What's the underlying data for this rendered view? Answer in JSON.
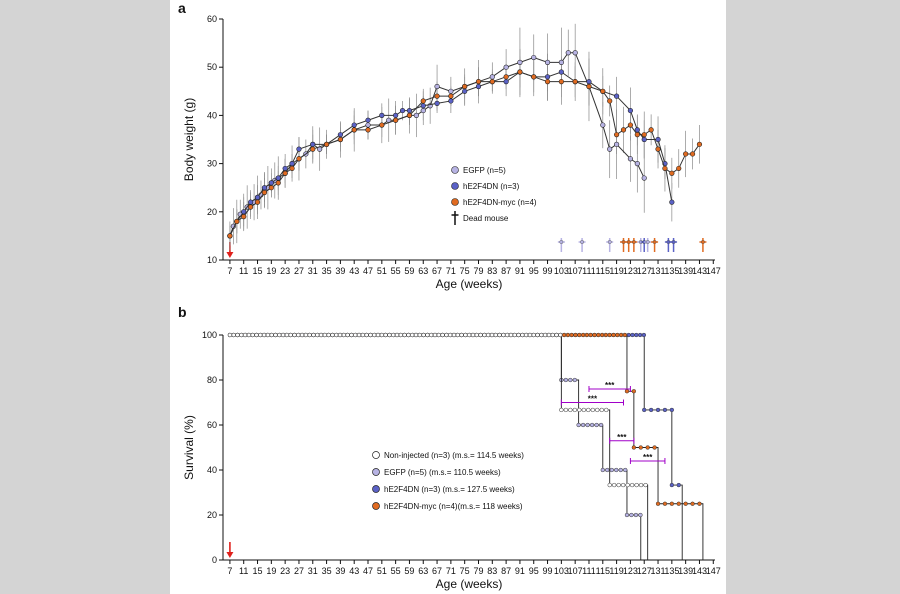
{
  "colors": {
    "egfp": "#b7b3e3",
    "hE2F4DN": "#5b62c6",
    "hE2F4DN_myc": "#e06b21",
    "noninjected": "#ffffff",
    "arrow": "#e0201b",
    "sig": "#a000c8",
    "line": "#333333",
    "errbar": "#888888"
  },
  "chart_data": [
    {
      "panel_label": "a",
      "type": "line",
      "ylabel": "Body weight (g)",
      "xlabel": "Age (weeks)",
      "xlim": [
        5,
        147.5
      ],
      "ylim": [
        10,
        60
      ],
      "x_ticks": [
        7,
        11,
        15,
        19,
        23,
        27,
        31,
        35,
        39,
        43,
        47,
        51,
        55,
        59,
        63,
        67,
        71,
        75,
        79,
        83,
        87,
        91,
        95,
        99,
        103,
        107,
        111,
        115,
        119,
        123,
        127,
        131,
        135,
        139,
        143,
        147
      ],
      "y_ticks": [
        10,
        20,
        30,
        40,
        50,
        60
      ],
      "legend": [
        {
          "name": "EGFP (n=5)",
          "series": "egfp"
        },
        {
          "name": "hE2F4DN (n=3)",
          "series": "hE2F4DN"
        },
        {
          "name": "hE2F4DN-myc (n=4)",
          "series": "hE2F4DN_myc"
        },
        {
          "name": "Dead mouse",
          "symbol": "dagger"
        }
      ],
      "series": [
        {
          "key": "egfp",
          "name": "EGFP (n=5)",
          "err": 3,
          "x": [
            7,
            8,
            9,
            10,
            11,
            12,
            13,
            14,
            15,
            16,
            17,
            18,
            19,
            20,
            21,
            23,
            25,
            27,
            29,
            31,
            33,
            35,
            39,
            43,
            47,
            51,
            53,
            55,
            59,
            61,
            63,
            65,
            67,
            71,
            75,
            79,
            83,
            87,
            91,
            95,
            99,
            103,
            105,
            107,
            111,
            115,
            117,
            119,
            123,
            125,
            127
          ],
          "y": [
            15,
            17,
            18,
            19.5,
            20,
            21,
            21.5,
            22,
            23,
            23.5,
            24.5,
            25,
            26,
            26.5,
            27,
            28,
            30,
            31,
            32,
            34,
            33,
            34,
            35,
            37,
            38,
            38,
            39,
            39,
            40,
            40,
            41,
            42,
            46,
            45,
            46,
            47,
            48,
            50,
            51,
            52,
            51,
            51,
            53,
            53,
            46,
            38,
            33,
            34,
            31,
            30,
            27
          ]
        },
        {
          "key": "hE2F4DN",
          "name": "hE2F4DN (n=3)",
          "err": 2,
          "x": [
            7,
            9,
            11,
            13,
            15,
            17,
            19,
            21,
            23,
            25,
            27,
            31,
            35,
            39,
            43,
            47,
            51,
            55,
            57,
            59,
            63,
            67,
            71,
            75,
            79,
            83,
            87,
            91,
            95,
            99,
            103,
            107,
            111,
            115,
            119,
            123,
            125,
            127,
            131,
            133,
            135
          ],
          "y": [
            15,
            18,
            20,
            22,
            23,
            25,
            26,
            27,
            29,
            30,
            33,
            34,
            34,
            36,
            38,
            39,
            40,
            40,
            41,
            41,
            42,
            42.5,
            43,
            45,
            46,
            47,
            47,
            49,
            48,
            48,
            49,
            47,
            47,
            45,
            44,
            41,
            37,
            35,
            35,
            30,
            22
          ]
        },
        {
          "key": "hE2F4DN_myc",
          "name": "hE2F4DN-myc (n=4)",
          "err": 2,
          "x": [
            7,
            9,
            11,
            13,
            15,
            17,
            19,
            21,
            23,
            25,
            27,
            31,
            35,
            39,
            43,
            47,
            51,
            55,
            59,
            63,
            67,
            71,
            75,
            79,
            83,
            87,
            91,
            95,
            99,
            103,
            107,
            111,
            115,
            117,
            119,
            121,
            123,
            125,
            127,
            129,
            131,
            133,
            135,
            137,
            139,
            141,
            143
          ],
          "y": [
            15,
            18,
            19,
            21,
            22,
            24,
            25,
            26,
            28,
            29,
            31,
            33,
            34,
            35,
            37,
            37,
            38,
            39,
            40,
            43,
            44,
            44,
            46,
            47,
            47,
            48,
            49,
            48,
            47,
            47,
            47,
            46,
            45,
            43,
            36,
            37,
            38,
            36,
            36,
            37,
            33,
            29,
            28,
            29,
            32,
            32,
            34
          ]
        }
      ],
      "deaths": [
        {
          "x": 103,
          "series": "egfp"
        },
        {
          "x": 109,
          "series": "egfp"
        },
        {
          "x": 117,
          "series": "egfp"
        },
        {
          "x": 121,
          "series": "hE2F4DN_myc"
        },
        {
          "x": 122.5,
          "series": "hE2F4DN_myc"
        },
        {
          "x": 124,
          "series": "hE2F4DN_myc"
        },
        {
          "x": 126,
          "series": "egfp"
        },
        {
          "x": 127,
          "series": "hE2F4DN"
        },
        {
          "x": 128,
          "series": "egfp"
        },
        {
          "x": 130,
          "series": "hE2F4DN_myc"
        },
        {
          "x": 134,
          "series": "hE2F4DN"
        },
        {
          "x": 135.5,
          "series": "hE2F4DN"
        },
        {
          "x": 144,
          "series": "hE2F4DN_myc"
        }
      ],
      "start_arrow_x": 7
    },
    {
      "panel_label": "b",
      "type": "line",
      "ylabel": "Survival (%)",
      "xlabel": "Age (weeks)",
      "xlim": [
        5,
        147.5
      ],
      "ylim": [
        0,
        100
      ],
      "x_ticks": [
        7,
        11,
        15,
        19,
        23,
        27,
        31,
        35,
        39,
        43,
        47,
        51,
        55,
        59,
        63,
        67,
        71,
        75,
        79,
        83,
        87,
        91,
        95,
        99,
        103,
        107,
        111,
        115,
        119,
        123,
        127,
        131,
        135,
        139,
        143,
        147
      ],
      "y_ticks": [
        0,
        20,
        40,
        60,
        80,
        100
      ],
      "legend": [
        {
          "name": "Non-injected (n=3) (m.s.= 114.5 weeks)",
          "series": "noninjected"
        },
        {
          "name": "EGFP (n=5) (m.s.= 110.5 weeks)",
          "series": "egfp"
        },
        {
          "name": "hE2F4DN (n=3) (m.s.= 127.5 weeks)",
          "series": "hE2F4DN"
        },
        {
          "name": "hE2F4DN-myc (n=4)(m.s.= 118 weeks)",
          "series": "hE2F4DN_myc"
        }
      ],
      "series": [
        {
          "key": "hE2F4DN",
          "name": "hE2F4DN (n=3)",
          "steps": [
            [
              7,
              100
            ],
            [
              127,
              100
            ],
            [
              127,
              66.7
            ],
            [
              135,
              66.7
            ],
            [
              135,
              33.3
            ],
            [
              138,
              33.3
            ],
            [
              138,
              0
            ]
          ],
          "marker_step": 1.5
        },
        {
          "key": "hE2F4DN_myc",
          "name": "hE2F4DN-myc (n=4)",
          "steps": [
            [
              7,
              100
            ],
            [
              122,
              100
            ],
            [
              122,
              75
            ],
            [
              124,
              75
            ],
            [
              124,
              50
            ],
            [
              131,
              50
            ],
            [
              131,
              25
            ],
            [
              144,
              25
            ],
            [
              144,
              0
            ]
          ],
          "marker_step": 1.5
        },
        {
          "key": "egfp",
          "name": "EGFP (n=5)",
          "steps": [
            [
              7,
              100
            ],
            [
              103,
              100
            ],
            [
              103,
              80
            ],
            [
              108,
              80
            ],
            [
              108,
              60
            ],
            [
              115,
              60
            ],
            [
              115,
              40
            ],
            [
              122,
              40
            ],
            [
              122,
              20
            ],
            [
              126,
              20
            ],
            [
              126,
              0
            ]
          ],
          "marker_step": 1.5
        },
        {
          "key": "noninjected",
          "name": "Non-injected (n=3)",
          "steps": [
            [
              7,
              100
            ],
            [
              103,
              100
            ],
            [
              103,
              66.7
            ],
            [
              117,
              66.7
            ],
            [
              117,
              33.3
            ],
            [
              128,
              33.3
            ],
            [
              128,
              0
            ]
          ],
          "marker_step": 1.5
        }
      ],
      "significance": [
        {
          "x1": 111,
          "x2": 123,
          "y": 76,
          "label": "***"
        },
        {
          "x1": 103,
          "x2": 121,
          "y": 70,
          "label": "***"
        },
        {
          "x1": 117,
          "x2": 124,
          "y": 53,
          "label": "***"
        },
        {
          "x1": 123,
          "x2": 133,
          "y": 44,
          "label": "***"
        }
      ],
      "start_arrow_x": 7
    }
  ]
}
